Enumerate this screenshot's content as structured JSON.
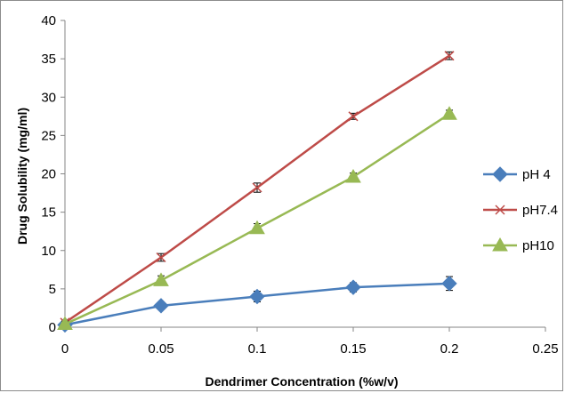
{
  "chart_data": {
    "type": "line",
    "xlabel": "Dendrimer Concentration (%w/v)",
    "ylabel": "Drug Solubility (mg/ml)",
    "xlim": [
      0,
      0.25
    ],
    "ylim": [
      0,
      40
    ],
    "xticks": [
      "0",
      "0.05",
      "0.1",
      "0.15",
      "0.2",
      "0.25"
    ],
    "yticks": [
      "0",
      "5",
      "10",
      "15",
      "20",
      "25",
      "30",
      "35",
      "40"
    ],
    "grid": false,
    "legend_position": "right",
    "x": [
      0,
      0.05,
      0.1,
      0.15,
      0.2
    ],
    "series": [
      {
        "name": "pH 4",
        "marker": "diamond",
        "color": "#4a7ebb",
        "values": [
          0.3,
          2.8,
          4.0,
          5.2,
          5.7
        ],
        "errors": [
          0.2,
          0.3,
          0.7,
          0.6,
          0.9
        ]
      },
      {
        "name": "pH7.4",
        "marker": "x",
        "color": "#be4b48",
        "values": [
          0.6,
          9.1,
          18.2,
          27.5,
          35.4
        ],
        "errors": [
          0.2,
          0.5,
          0.6,
          0.4,
          0.5
        ]
      },
      {
        "name": "pH10",
        "marker": "triangle",
        "color": "#98b954",
        "values": [
          0.4,
          6.1,
          12.9,
          19.6,
          27.8
        ],
        "errors": [
          0.2,
          0.6,
          0.6,
          0.5,
          0.5
        ]
      }
    ]
  }
}
